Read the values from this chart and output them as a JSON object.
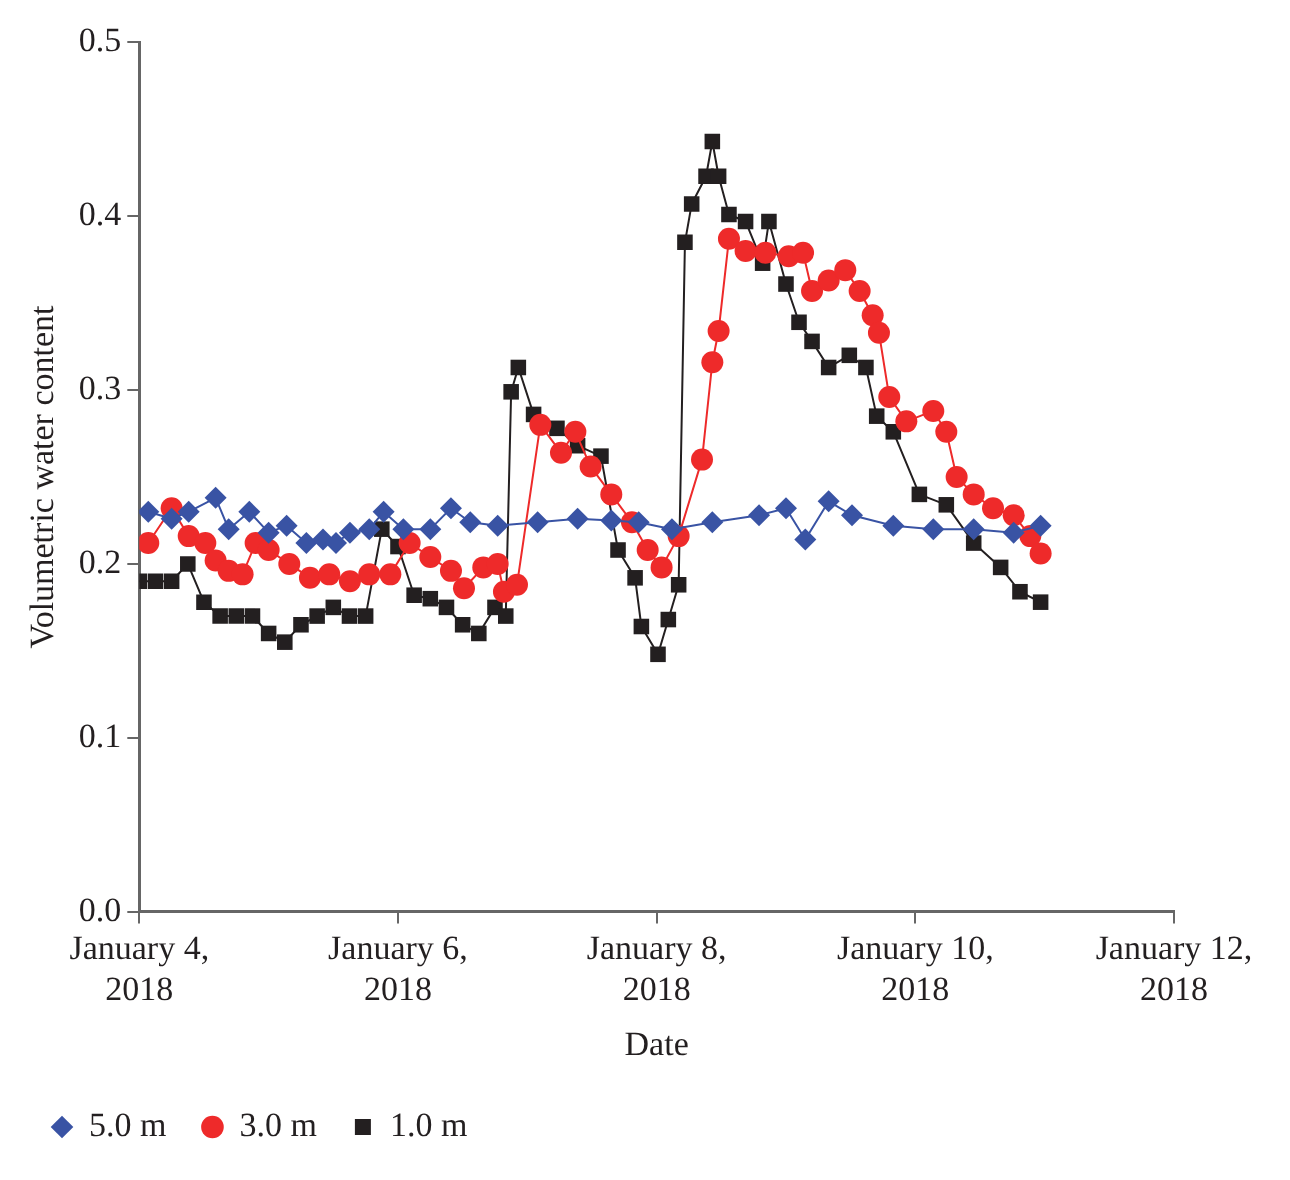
{
  "chart_data": {
    "type": "line",
    "xlabel": "Date",
    "ylabel": "Volumetric water content",
    "xlim": [
      "2018-01-04",
      "2018-01-12"
    ],
    "xticks": [
      {
        "value": "2018-01-04",
        "label": "January 4, 2018"
      },
      {
        "value": "2018-01-06",
        "label": "January 6, 2018"
      },
      {
        "value": "2018-01-08",
        "label": "January 8, 2018"
      },
      {
        "value": "2018-01-10",
        "label": "January 10, 2018"
      },
      {
        "value": "2018-01-12",
        "label": "January 12, 2018"
      }
    ],
    "ylim": [
      0,
      0.5
    ],
    "yticks": [
      {
        "value": 0,
        "label": "0.0"
      },
      0.1,
      0.2,
      0.3,
      0.4,
      0.5
    ],
    "grid": false,
    "legend": "bottom",
    "line_style": "solid",
    "series": [
      {
        "name": "1.0 m",
        "color": "#231f20",
        "marker": "square",
        "x": [
          "2018-01-04T00:00",
          "2018-01-04T03:00",
          "2018-01-04T06:00",
          "2018-01-04T09:00",
          "2018-01-04T12:00",
          "2018-01-04T15:00",
          "2018-01-04T18:00",
          "2018-01-04T21:00",
          "2018-01-05T00:00",
          "2018-01-05T03:00",
          "2018-01-05T06:00",
          "2018-01-05T09:00",
          "2018-01-05T12:00",
          "2018-01-05T15:00",
          "2018-01-05T18:00",
          "2018-01-05T21:00",
          "2018-01-06T00:00",
          "2018-01-06T03:00",
          "2018-01-06T06:00",
          "2018-01-06T09:00",
          "2018-01-06T12:00",
          "2018-01-06T15:00",
          "2018-01-06T18:00",
          "2018-01-06T20:00",
          "2018-01-06T21:00",
          "2018-01-06T22:20",
          "2018-01-07T01:10",
          "2018-01-07T05:30",
          "2018-01-07T09:20",
          "2018-01-07T13:40",
          "2018-01-07T16:50",
          "2018-01-07T20:00",
          "2018-01-07T21:10",
          "2018-01-08T00:15",
          "2018-01-08T02:10",
          "2018-01-08T04:05",
          "2018-01-08T05:15",
          "2018-01-08T06:30",
          "2018-01-08T09:10",
          "2018-01-08T10:20",
          "2018-01-08T11:30",
          "2018-01-08T13:25",
          "2018-01-08T16:30",
          "2018-01-08T19:40",
          "2018-01-08T20:50",
          "2018-01-09T00:00",
          "2018-01-09T02:25",
          "2018-01-09T04:50",
          "2018-01-09T07:55",
          "2018-01-09T11:45",
          "2018-01-09T14:50",
          "2018-01-09T16:50",
          "2018-01-09T19:55",
          "2018-01-10T00:45",
          "2018-01-10T05:45",
          "2018-01-10T10:50",
          "2018-01-10T15:50",
          "2018-01-10T19:25",
          "2018-01-10T23:15"
        ],
        "values": [
          0.19,
          0.19,
          0.19,
          0.2,
          0.178,
          0.17,
          0.17,
          0.17,
          0.16,
          0.155,
          0.165,
          0.17,
          0.175,
          0.17,
          0.17,
          0.22,
          0.21,
          0.182,
          0.18,
          0.175,
          0.165,
          0.16,
          0.175,
          0.17,
          0.299,
          0.313,
          0.286,
          0.278,
          0.268,
          0.262,
          0.208,
          0.192,
          0.164,
          0.148,
          0.168,
          0.188,
          0.385,
          0.407,
          0.423,
          0.443,
          0.423,
          0.401,
          0.397,
          0.373,
          0.397,
          0.361,
          0.339,
          0.328,
          0.313,
          0.32,
          0.313,
          0.285,
          0.276,
          0.24,
          0.234,
          0.212,
          0.198,
          0.184,
          0.178
        ]
      },
      {
        "name": "3.0 m",
        "color": "#ee2a2a",
        "marker": "circle",
        "x": [
          "2018-01-04T01:40",
          "2018-01-04T06:00",
          "2018-01-04T09:10",
          "2018-01-04T12:15",
          "2018-01-04T14:10",
          "2018-01-04T16:35",
          "2018-01-04T19:10",
          "2018-01-04T21:35",
          "2018-01-05T00:00",
          "2018-01-05T03:50",
          "2018-01-05T07:40",
          "2018-01-05T11:15",
          "2018-01-05T15:05",
          "2018-01-05T18:40",
          "2018-01-05T22:35",
          "2018-01-06T02:10",
          "2018-01-06T06:00",
          "2018-01-06T09:50",
          "2018-01-06T12:15",
          "2018-01-06T15:50",
          "2018-01-06T18:30",
          "2018-01-06T19:40",
          "2018-01-06T22:05",
          "2018-01-07T02:25",
          "2018-01-07T06:15",
          "2018-01-07T08:55",
          "2018-01-07T11:45",
          "2018-01-07T15:35",
          "2018-01-07T19:25",
          "2018-01-07T22:20",
          "2018-01-08T00:55",
          "2018-01-08T04:05",
          "2018-01-08T08:25",
          "2018-01-08T10:20",
          "2018-01-08T11:30",
          "2018-01-08T13:25",
          "2018-01-08T16:30",
          "2018-01-08T20:10",
          "2018-01-09T00:30",
          "2018-01-09T03:10",
          "2018-01-09T04:50",
          "2018-01-09T07:55",
          "2018-01-09T11:00",
          "2018-01-09T13:40",
          "2018-01-09T16:05",
          "2018-01-09T17:15",
          "2018-01-09T19:10",
          "2018-01-09T22:20",
          "2018-01-10T03:20",
          "2018-01-10T05:45",
          "2018-01-10T07:40",
          "2018-01-10T10:50",
          "2018-01-10T14:25",
          "2018-01-10T18:15",
          "2018-01-10T21:20",
          "2018-01-10T23:15"
        ],
        "values": [
          0.212,
          0.232,
          0.216,
          0.212,
          0.202,
          0.196,
          0.194,
          0.212,
          0.208,
          0.2,
          0.192,
          0.194,
          0.19,
          0.194,
          0.194,
          0.212,
          0.204,
          0.196,
          0.186,
          0.198,
          0.2,
          0.184,
          0.188,
          0.28,
          0.264,
          0.276,
          0.256,
          0.24,
          0.224,
          0.208,
          0.198,
          0.216,
          0.26,
          0.316,
          0.334,
          0.387,
          0.38,
          0.379,
          0.377,
          0.379,
          0.357,
          0.363,
          0.369,
          0.357,
          0.343,
          0.333,
          0.296,
          0.282,
          0.288,
          0.276,
          0.25,
          0.24,
          0.232,
          0.228,
          0.216,
          0.206
        ]
      },
      {
        "name": "5.0 m",
        "color": "#3953a4",
        "marker": "diamond",
        "x": [
          "2018-01-04T01:40",
          "2018-01-04T06:00",
          "2018-01-04T09:10",
          "2018-01-04T14:10",
          "2018-01-04T16:35",
          "2018-01-04T20:25",
          "2018-01-05T00:00",
          "2018-01-05T03:20",
          "2018-01-05T07:00",
          "2018-01-05T10:05",
          "2018-01-05T12:30",
          "2018-01-05T15:05",
          "2018-01-05T18:40",
          "2018-01-05T21:20",
          "2018-01-06T01:00",
          "2018-01-06T06:00",
          "2018-01-06T09:50",
          "2018-01-06T13:25",
          "2018-01-06T18:30",
          "2018-01-07T01:55",
          "2018-01-07T09:20",
          "2018-01-07T15:35",
          "2018-01-07T20:40",
          "2018-01-08T02:50",
          "2018-01-08T10:20",
          "2018-01-08T19:00",
          "2018-01-09T00:00",
          "2018-01-09T03:35",
          "2018-01-09T07:55",
          "2018-01-09T12:15",
          "2018-01-09T19:55",
          "2018-01-10T03:20",
          "2018-01-10T10:50",
          "2018-01-10T18:15",
          "2018-01-10T23:15"
        ],
        "values": [
          0.23,
          0.226,
          0.23,
          0.238,
          0.22,
          0.23,
          0.218,
          0.222,
          0.212,
          0.214,
          0.212,
          0.218,
          0.22,
          0.23,
          0.22,
          0.22,
          0.232,
          0.224,
          0.222,
          0.224,
          0.226,
          0.225,
          0.224,
          0.22,
          0.224,
          0.228,
          0.232,
          0.214,
          0.236,
          0.228,
          0.222,
          0.22,
          0.22,
          0.218,
          0.222
        ]
      }
    ]
  }
}
